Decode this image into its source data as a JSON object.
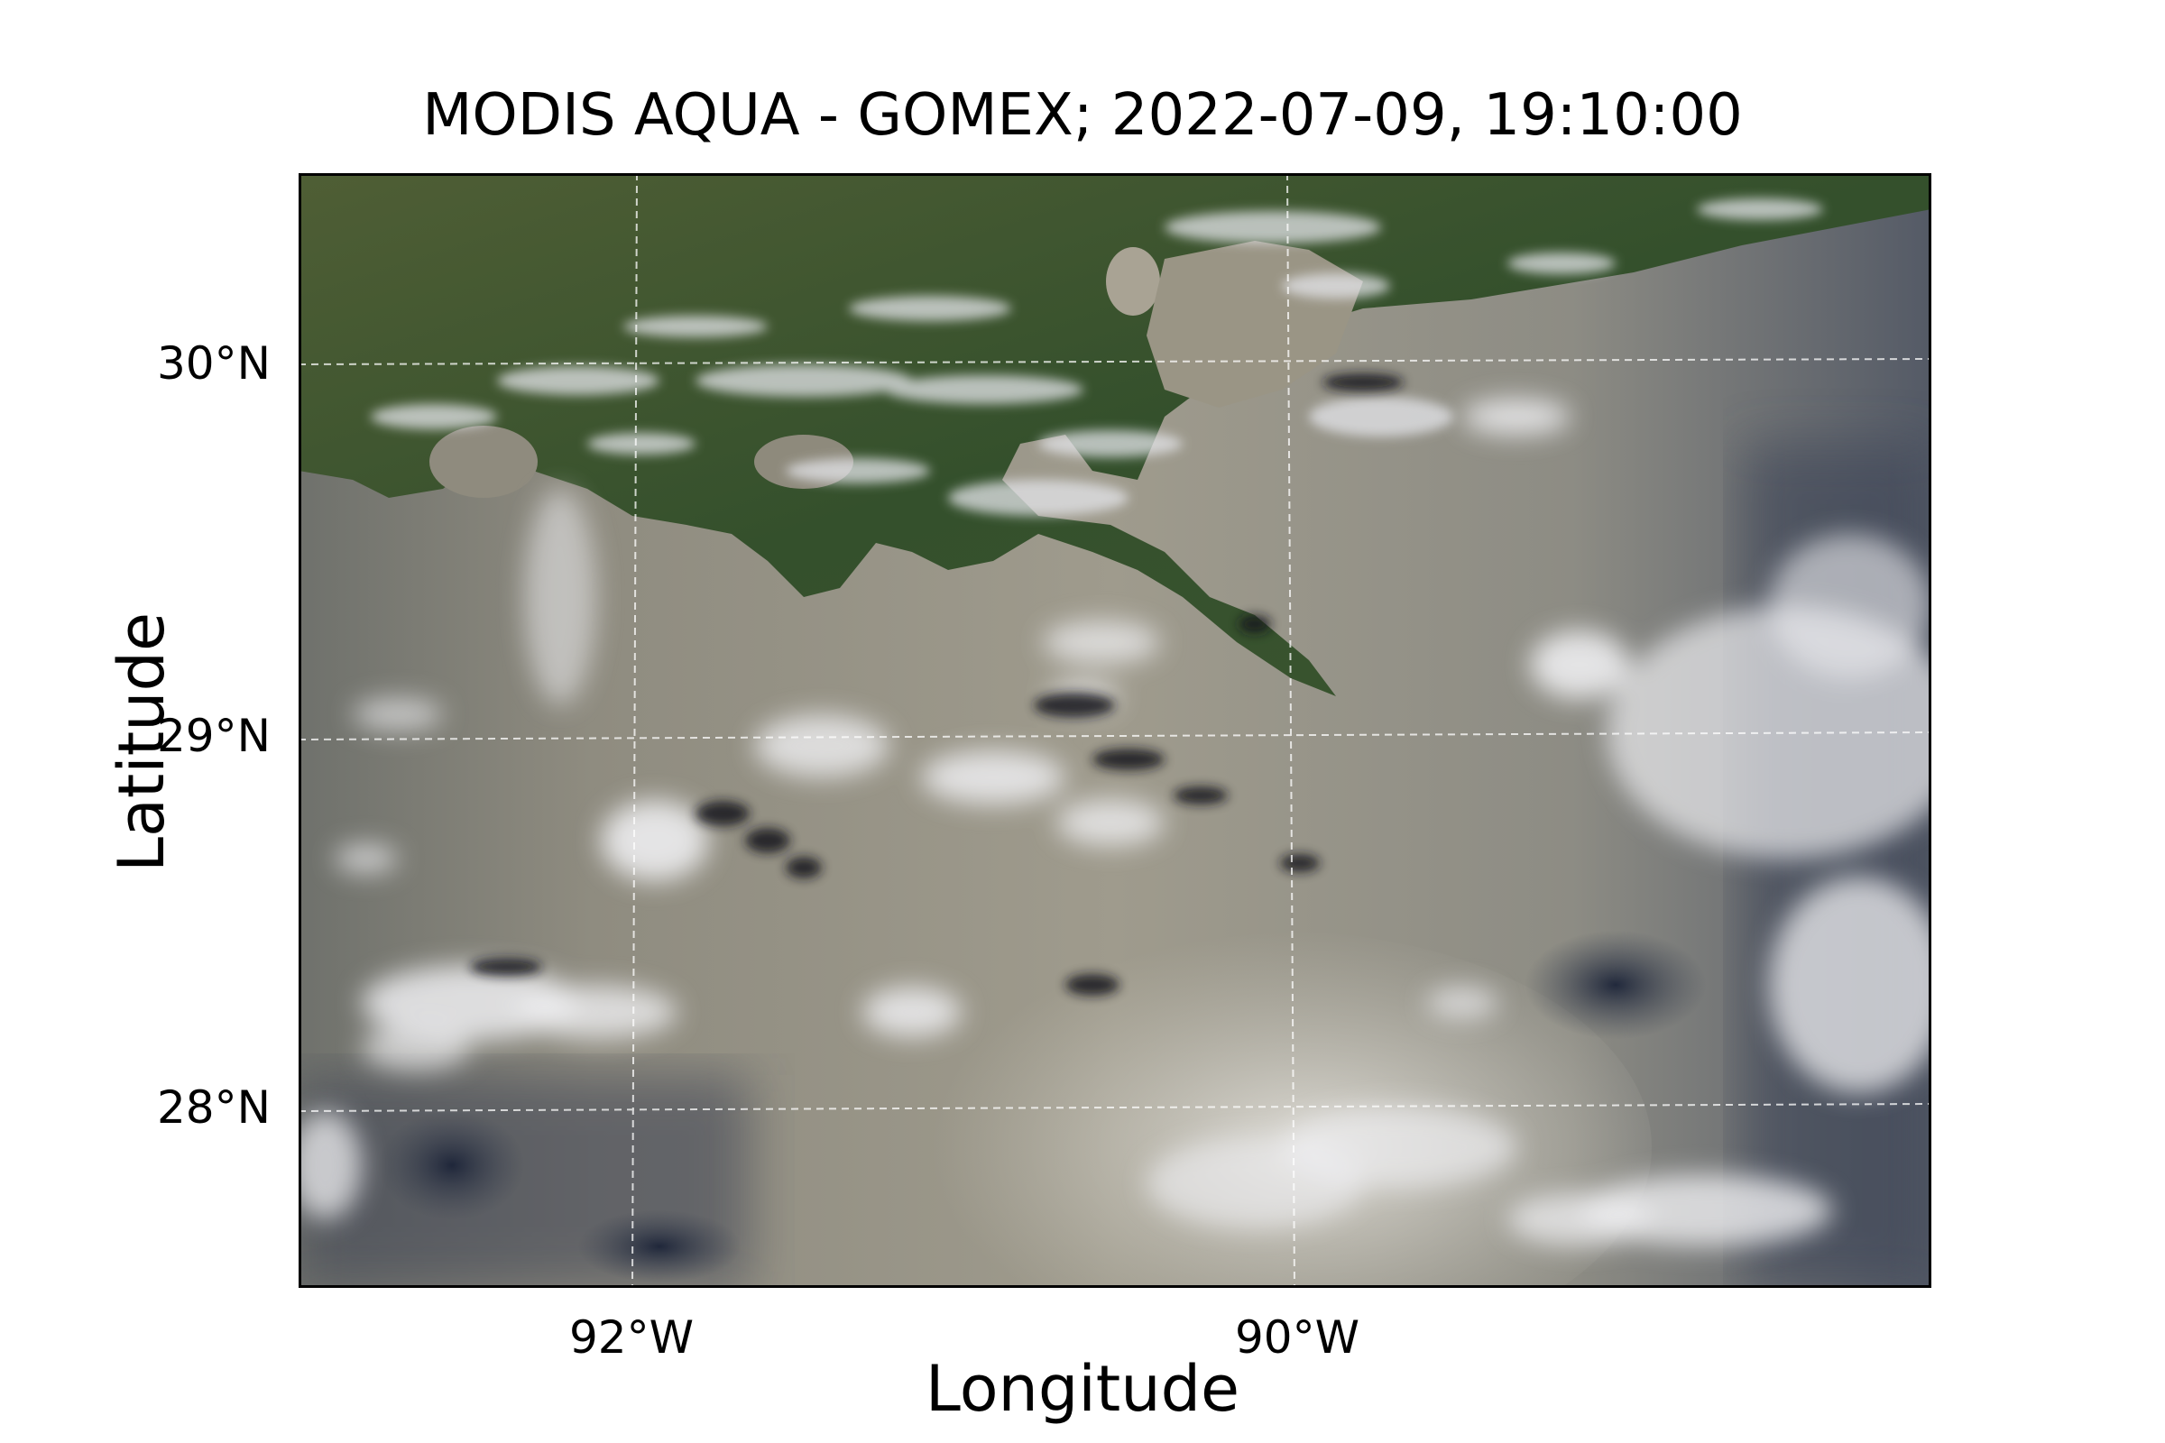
{
  "figure": {
    "title": "MODIS AQUA - GOMEX; 2022-07-09, 19:10:00",
    "xlabel": "Longitude",
    "ylabel": "Latitude"
  },
  "axes": {
    "lat_ticks": [
      {
        "value": 30,
        "label": "30°N"
      },
      {
        "value": 29,
        "label": "29°N"
      },
      {
        "value": 28,
        "label": "28°N"
      }
    ],
    "lon_ticks": [
      {
        "value": -92,
        "label": "92°W"
      },
      {
        "value": -90,
        "label": "90°W"
      }
    ],
    "lon_range": [
      -93.0,
      -88.1
    ],
    "lat_range": [
      27.55,
      30.53
    ],
    "gridline_style": "dashed white"
  },
  "colors": {
    "land": "#3f5a30",
    "turbid_water": "#9e9a8c",
    "open_water": "#4e5466",
    "cloud": "#e8e8ea",
    "sunglint": "#cfcec8"
  }
}
